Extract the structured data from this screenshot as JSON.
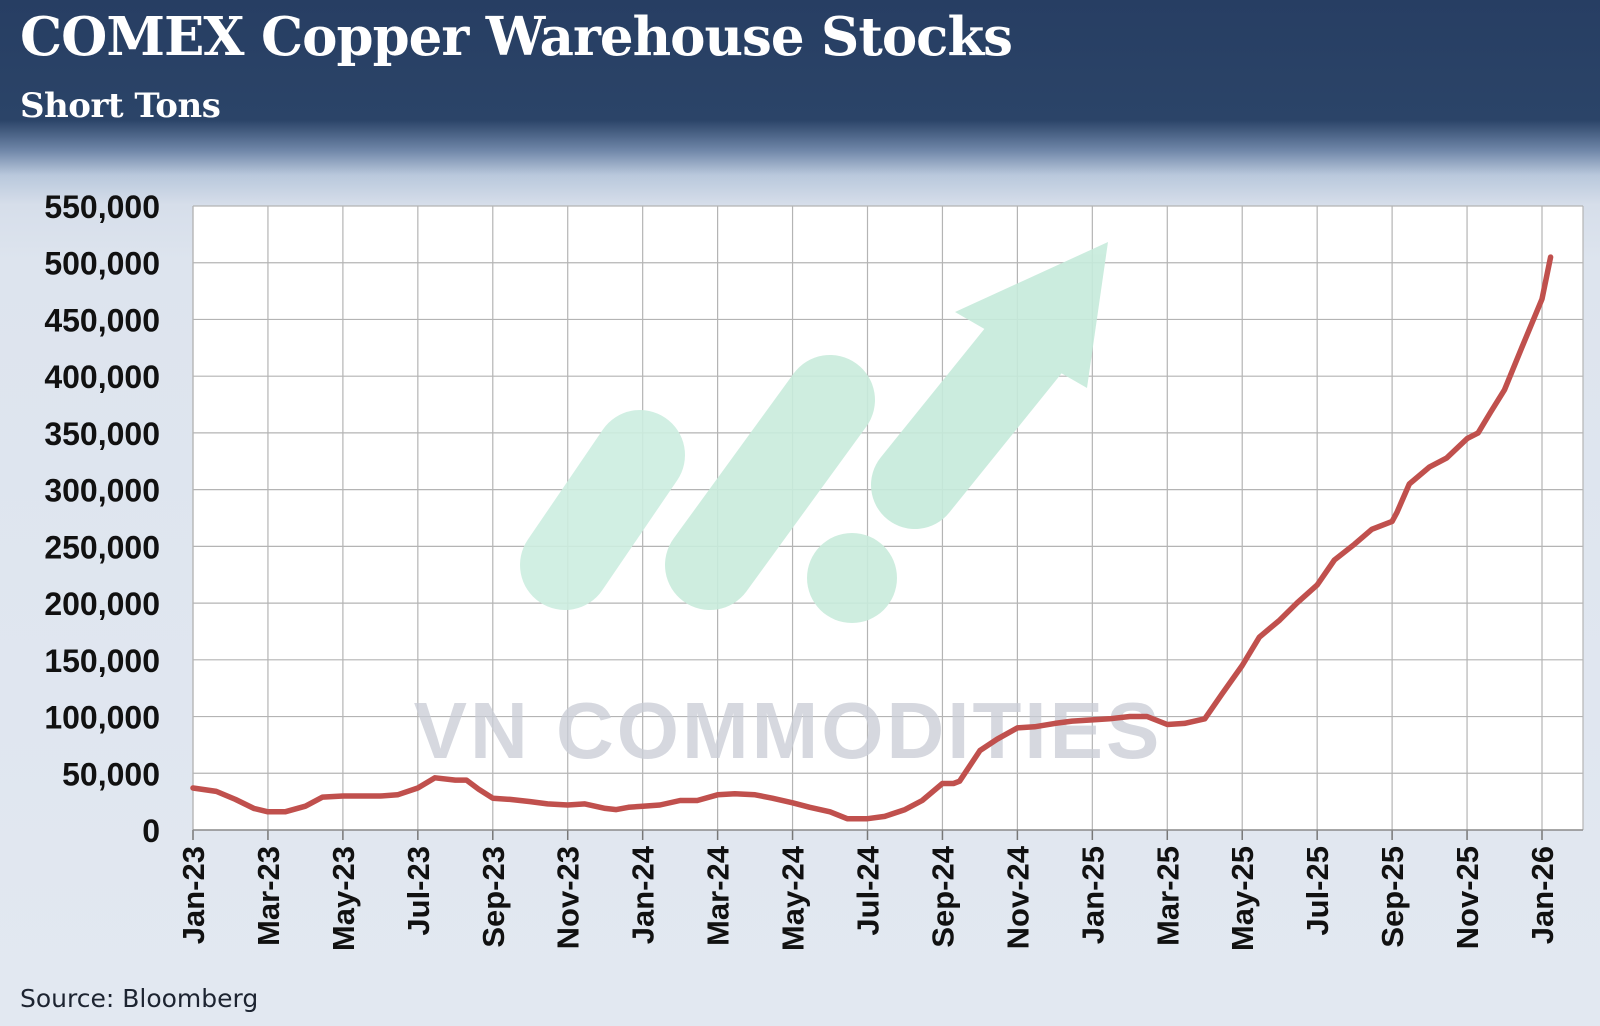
{
  "header": {
    "title": "COMEX Copper Warehouse Stocks",
    "subtitle": "Short Tons"
  },
  "footer": {
    "source": "Source: Bloomberg"
  },
  "watermark": {
    "text": "VN COMMODITIES"
  },
  "colors": {
    "header_bg": "#2b4468",
    "series_line": "#c0504d",
    "watermark_mark": "#c6ebdb",
    "watermark_text": "#c9ccd6"
  },
  "chart_data": {
    "type": "line",
    "title": "COMEX Copper Warehouse Stocks",
    "ylabel": "Short Tons",
    "ylim": [
      0,
      550000
    ],
    "yticks": [
      0,
      50000,
      100000,
      150000,
      200000,
      250000,
      300000,
      350000,
      400000,
      450000,
      500000,
      550000
    ],
    "ytick_labels": [
      "0",
      "50,000",
      "100,000",
      "150,000",
      "200,000",
      "250,000",
      "300,000",
      "350,000",
      "400,000",
      "450,000",
      "500,000",
      "550,000"
    ],
    "xtick_labels": [
      "Jan-23",
      "Mar-23",
      "May-23",
      "Jul-23",
      "Sep-23",
      "Nov-23",
      "Jan-24",
      "Mar-24",
      "May-24",
      "Jul-24",
      "Sep-24",
      "Nov-24",
      "Jan-25",
      "Mar-25",
      "May-25",
      "Jul-25",
      "Sep-25",
      "Nov-25",
      "Jan-26"
    ],
    "grid": true,
    "legend": "none",
    "series": [
      {
        "x": [
          "2023-01-01",
          "2023-01-20",
          "2023-02-05",
          "2023-02-20",
          "2023-03-01",
          "2023-03-15",
          "2023-04-01",
          "2023-04-15",
          "2023-05-01",
          "2023-05-15",
          "2023-06-01",
          "2023-06-15",
          "2023-07-01",
          "2023-07-15",
          "2023-08-01",
          "2023-08-10",
          "2023-08-20",
          "2023-09-01",
          "2023-09-15",
          "2023-10-01",
          "2023-10-15",
          "2023-11-01",
          "2023-11-15",
          "2023-12-01",
          "2023-12-10",
          "2023-12-20",
          "2024-01-01",
          "2024-01-15",
          "2024-02-01",
          "2024-02-15",
          "2024-03-01",
          "2024-03-15",
          "2024-04-01",
          "2024-04-15",
          "2024-05-01",
          "2024-05-15",
          "2024-06-01",
          "2024-06-15",
          "2024-07-01",
          "2024-07-15",
          "2024-08-01",
          "2024-08-15",
          "2024-09-01",
          "2024-09-10",
          "2024-09-15",
          "2024-10-01",
          "2024-10-15",
          "2024-11-01",
          "2024-11-15",
          "2024-12-01",
          "2024-12-15",
          "2025-01-01",
          "2025-01-15",
          "2025-02-01",
          "2025-02-15",
          "2025-03-01",
          "2025-03-15",
          "2025-04-01",
          "2025-04-15",
          "2025-05-01",
          "2025-05-15",
          "2025-06-01",
          "2025-06-15",
          "2025-07-01",
          "2025-07-15",
          "2025-08-01",
          "2025-08-15",
          "2025-09-01",
          "2025-09-05",
          "2025-09-15",
          "2025-10-01",
          "2025-10-15",
          "2025-11-01",
          "2025-11-10",
          "2025-11-20",
          "2025-12-01",
          "2025-12-15",
          "2026-01-01",
          "2026-01-08"
        ],
        "values": [
          37000,
          34000,
          27000,
          19000,
          16000,
          16000,
          21000,
          29000,
          30000,
          30000,
          30000,
          31000,
          37000,
          46000,
          44000,
          44000,
          36000,
          28000,
          27000,
          25000,
          23000,
          22000,
          23000,
          19000,
          18000,
          20000,
          21000,
          22000,
          26000,
          26000,
          31000,
          32000,
          31000,
          28000,
          24000,
          20000,
          16000,
          10000,
          10000,
          12000,
          18000,
          26000,
          41000,
          41000,
          43000,
          70000,
          80000,
          90000,
          91000,
          94000,
          96000,
          97000,
          98000,
          100000,
          100000,
          93000,
          94000,
          98000,
          120000,
          145000,
          170000,
          185000,
          200000,
          216000,
          238000,
          252000,
          265000,
          272000,
          280000,
          305000,
          320000,
          328000,
          345000,
          350000,
          368000,
          388000,
          425000,
          468000,
          505000
        ]
      }
    ]
  }
}
